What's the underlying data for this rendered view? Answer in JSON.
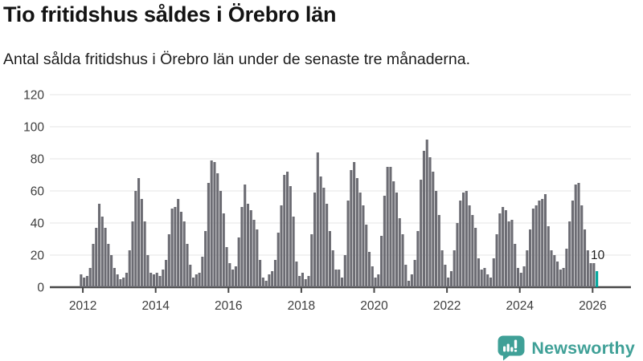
{
  "header": {
    "title": "Tio fritidshus såldes i Örebro län",
    "subtitle": "Antal sålda fritidshus i Örebro län under de senaste tre månaderna."
  },
  "chart_data": {
    "type": "bar",
    "title": "Tio fritidshus såldes i Örebro län",
    "subtitle": "Antal sålda fritidshus i Örebro län under de senaste tre månaderna.",
    "unit": "fritidshus per 3 månader",
    "start_month": "2011-12",
    "values": [
      8,
      6,
      7,
      12,
      27,
      37,
      52,
      44,
      37,
      27,
      20,
      12,
      8,
      5,
      6,
      9,
      23,
      41,
      60,
      68,
      55,
      41,
      20,
      9,
      8,
      9,
      7,
      11,
      17,
      33,
      49,
      50,
      55,
      47,
      41,
      27,
      14,
      6,
      8,
      9,
      19,
      35,
      65,
      79,
      78,
      71,
      60,
      46,
      25,
      15,
      11,
      13,
      31,
      50,
      64,
      52,
      48,
      42,
      36,
      17,
      6,
      4,
      8,
      10,
      17,
      34,
      51,
      70,
      72,
      63,
      44,
      16,
      7,
      9,
      5,
      7,
      33,
      59,
      84,
      69,
      62,
      52,
      35,
      23,
      11,
      11,
      6,
      20,
      54,
      73,
      78,
      68,
      59,
      51,
      39,
      22,
      13,
      6,
      8,
      32,
      57,
      75,
      75,
      66,
      59,
      43,
      33,
      14,
      4,
      8,
      17,
      35,
      67,
      85,
      92,
      81,
      72,
      60,
      45,
      23,
      14,
      6,
      10,
      23,
      40,
      54,
      59,
      60,
      51,
      45,
      37,
      18,
      11,
      12,
      8,
      6,
      18,
      33,
      46,
      50,
      48,
      41,
      42,
      27,
      12,
      9,
      13,
      23,
      36,
      49,
      51,
      54,
      55,
      58,
      38,
      23,
      20,
      16,
      11,
      12,
      24,
      41,
      54,
      64,
      65,
      51,
      36,
      23,
      15,
      15,
      10
    ],
    "y_ticks": [
      0,
      20,
      40,
      60,
      80,
      100,
      120
    ],
    "ylim": [
      0,
      120
    ],
    "x_tick_labels": [
      "2012",
      "2014",
      "2016",
      "2018",
      "2020",
      "2022",
      "2024",
      "2026"
    ],
    "grid": "horizontal",
    "legend": "none",
    "bar_color": "#6c6c73",
    "highlight": {
      "index": 170,
      "value": 10,
      "label": "10",
      "color": "#00a69c"
    }
  },
  "branding": {
    "logo_text": "Newsworthy",
    "logo_color": "#3fa097",
    "logo_icon": "newsworthy-speech-bubble-bar-chart-icon"
  }
}
